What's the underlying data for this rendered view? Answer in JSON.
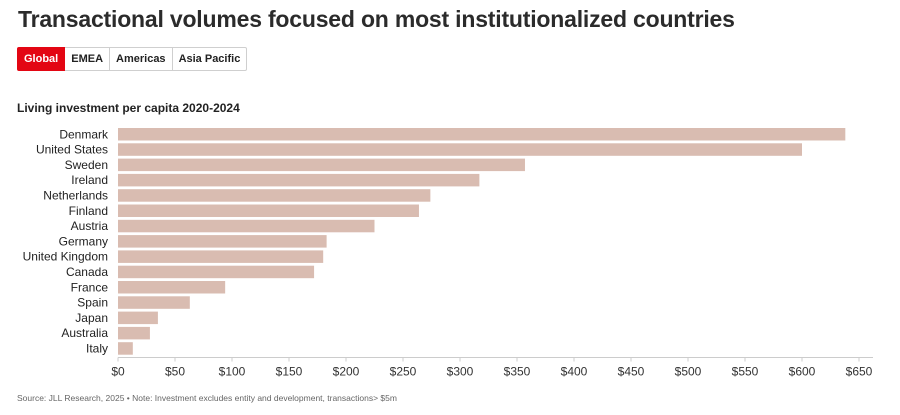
{
  "title": "Transactional volumes focused on most institutionalized countries",
  "tabs": [
    {
      "label": "Global",
      "active": true
    },
    {
      "label": "EMEA",
      "active": false
    },
    {
      "label": "Americas",
      "active": false
    },
    {
      "label": "Asia Pacific",
      "active": false
    }
  ],
  "colors": {
    "accent": "#e30613",
    "bar": "#d9bcb1",
    "axis": "#cccccc"
  },
  "chart_data": {
    "type": "bar",
    "orientation": "horizontal",
    "title": "Living investment per capita 2020-2024",
    "categories": [
      "Denmark",
      "United States",
      "Sweden",
      "Ireland",
      "Netherlands",
      "Finland",
      "Austria",
      "Germany",
      "United Kingdom",
      "Canada",
      "France",
      "Spain",
      "Japan",
      "Australia",
      "Italy"
    ],
    "values": [
      638,
      600,
      357,
      317,
      274,
      264,
      225,
      183,
      180,
      172,
      94,
      63,
      35,
      28,
      13
    ],
    "xlim": [
      0,
      650
    ],
    "xticks": [
      0,
      50,
      100,
      150,
      200,
      250,
      300,
      350,
      400,
      450,
      500,
      550,
      600,
      650
    ],
    "xtick_labels": [
      "$0",
      "$50",
      "$100",
      "$150",
      "$200",
      "$250",
      "$300",
      "$350",
      "$400",
      "$450",
      "$500",
      "$550",
      "$600",
      "$650"
    ],
    "xlabel": "",
    "ylabel": "",
    "grid": false
  },
  "source": "Source: JLL Research, 2025 • Note: Investment excludes entity and development, transactions> $5m"
}
